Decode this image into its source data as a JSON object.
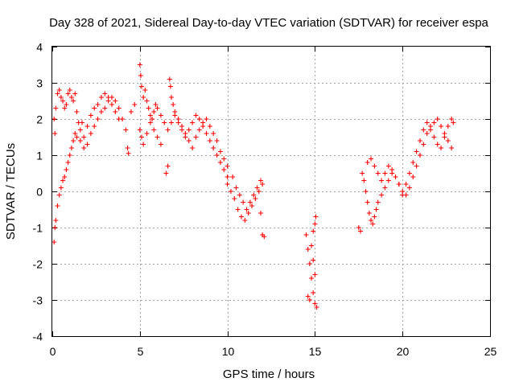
{
  "chart_data": {
    "type": "scatter",
    "title": "Day 328 of 2021, Sidereal Day-to-day VTEC variation (SDTVAR) for receiver espa",
    "xlabel": "GPS time / hours",
    "ylabel": "SDTVAR / TECUs",
    "xlim": [
      0,
      25
    ],
    "ylim": [
      -4,
      4
    ],
    "xticks": [
      0,
      5,
      10,
      15,
      20,
      25
    ],
    "yticks": [
      -4,
      -3,
      -2,
      -1,
      0,
      1,
      2,
      3,
      4
    ],
    "xtick_labels": [
      "0",
      "5",
      "10",
      "15",
      "20",
      "25"
    ],
    "ytick_labels": [
      "-4",
      "-3",
      "-2",
      "-1",
      "0",
      "1",
      "2",
      "3",
      "4"
    ],
    "grid": true,
    "marker": "+",
    "marker_color": "#ff0000",
    "series": [
      {
        "name": "SDTVAR",
        "points": [
          [
            0.1,
            -1.4
          ],
          [
            0.15,
            -1.0
          ],
          [
            0.2,
            -0.8
          ],
          [
            0.3,
            -0.4
          ],
          [
            0.4,
            -0.1
          ],
          [
            0.5,
            0.1
          ],
          [
            0.6,
            0.3
          ],
          [
            0.7,
            0.4
          ],
          [
            0.8,
            0.6
          ],
          [
            0.9,
            0.8
          ],
          [
            1.0,
            1.0
          ],
          [
            1.1,
            1.2
          ],
          [
            1.2,
            1.4
          ],
          [
            1.3,
            1.6
          ],
          [
            1.4,
            1.5
          ],
          [
            1.6,
            1.4
          ],
          [
            1.8,
            1.2
          ],
          [
            2.0,
            1.3
          ],
          [
            2.2,
            1.6
          ],
          [
            2.4,
            1.8
          ],
          [
            2.6,
            2.0
          ],
          [
            2.8,
            2.2
          ],
          [
            3.0,
            2.3
          ],
          [
            3.2,
            2.5
          ],
          [
            3.4,
            2.6
          ],
          [
            3.6,
            2.5
          ],
          [
            3.8,
            2.3
          ],
          [
            4.0,
            2.0
          ],
          [
            0.1,
            2.0
          ],
          [
            0.15,
            1.6
          ],
          [
            0.2,
            2.3
          ],
          [
            0.3,
            2.7
          ],
          [
            0.4,
            2.8
          ],
          [
            0.5,
            2.6
          ],
          [
            0.6,
            2.5
          ],
          [
            0.7,
            2.3
          ],
          [
            0.8,
            2.4
          ],
          [
            0.9,
            2.7
          ],
          [
            1.0,
            2.8
          ],
          [
            1.1,
            2.6
          ],
          [
            1.2,
            2.5
          ],
          [
            1.3,
            2.7
          ],
          [
            1.4,
            2.2
          ],
          [
            1.5,
            1.9
          ],
          [
            1.6,
            1.7
          ],
          [
            1.7,
            1.9
          ],
          [
            1.8,
            1.5
          ],
          [
            2.0,
            1.8
          ],
          [
            2.2,
            2.1
          ],
          [
            2.4,
            2.3
          ],
          [
            2.6,
            2.4
          ],
          [
            2.8,
            2.6
          ],
          [
            3.0,
            2.7
          ],
          [
            3.2,
            2.6
          ],
          [
            3.4,
            2.4
          ],
          [
            3.6,
            2.2
          ],
          [
            3.8,
            2.0
          ],
          [
            4.2,
            1.7
          ],
          [
            4.3,
            1.2
          ],
          [
            4.35,
            1.05
          ],
          [
            4.5,
            2.2
          ],
          [
            4.7,
            2.4
          ],
          [
            5.0,
            3.5
          ],
          [
            5.05,
            3.2
          ],
          [
            5.1,
            2.9
          ],
          [
            5.2,
            2.6
          ],
          [
            5.3,
            2.8
          ],
          [
            5.4,
            2.5
          ],
          [
            5.5,
            2.3
          ],
          [
            5.6,
            2.1
          ],
          [
            5.7,
            2.0
          ],
          [
            5.8,
            2.2
          ],
          [
            5.9,
            2.4
          ],
          [
            6.0,
            2.3
          ],
          [
            6.2,
            2.1
          ],
          [
            6.4,
            1.9
          ],
          [
            6.6,
            1.7
          ],
          [
            6.8,
            1.9
          ],
          [
            7.0,
            2.1
          ],
          [
            7.2,
            1.9
          ],
          [
            7.4,
            1.7
          ],
          [
            7.6,
            1.5
          ],
          [
            7.8,
            1.7
          ],
          [
            8.0,
            1.9
          ],
          [
            8.2,
            2.1
          ],
          [
            8.4,
            2.0
          ],
          [
            8.6,
            1.8
          ],
          [
            8.8,
            1.6
          ],
          [
            9.0,
            1.4
          ],
          [
            9.2,
            1.2
          ],
          [
            9.4,
            1.0
          ],
          [
            9.6,
            0.8
          ],
          [
            9.8,
            0.6
          ],
          [
            10.0,
            0.4
          ],
          [
            5.0,
            1.7
          ],
          [
            5.1,
            1.5
          ],
          [
            5.2,
            1.3
          ],
          [
            5.4,
            1.6
          ],
          [
            5.6,
            1.9
          ],
          [
            5.8,
            1.7
          ],
          [
            6.0,
            1.5
          ],
          [
            6.2,
            1.3
          ],
          [
            6.5,
            0.5
          ],
          [
            6.6,
            0.7
          ],
          [
            6.7,
            3.1
          ],
          [
            6.75,
            2.9
          ],
          [
            6.8,
            2.6
          ],
          [
            6.9,
            2.4
          ],
          [
            7.0,
            2.2
          ],
          [
            7.2,
            2.0
          ],
          [
            7.4,
            1.8
          ],
          [
            7.6,
            1.6
          ],
          [
            7.8,
            1.4
          ],
          [
            8.0,
            1.2
          ],
          [
            8.2,
            1.5
          ],
          [
            8.4,
            1.7
          ],
          [
            8.6,
            1.9
          ],
          [
            8.8,
            2.0
          ],
          [
            9.0,
            1.8
          ],
          [
            9.2,
            1.6
          ],
          [
            9.4,
            1.4
          ],
          [
            9.6,
            1.1
          ],
          [
            9.8,
            0.9
          ],
          [
            10.0,
            0.7
          ],
          [
            10.0,
            0.2
          ],
          [
            10.2,
            0.0
          ],
          [
            10.4,
            -0.2
          ],
          [
            10.6,
            -0.5
          ],
          [
            10.8,
            -0.7
          ],
          [
            11.0,
            -0.8
          ],
          [
            11.2,
            -0.6
          ],
          [
            11.4,
            -0.4
          ],
          [
            11.6,
            -0.2
          ],
          [
            11.8,
            0.0
          ],
          [
            12.0,
            0.2
          ],
          [
            12.0,
            -1.2
          ],
          [
            12.1,
            -1.25
          ],
          [
            10.3,
            0.4
          ],
          [
            10.5,
            0.1
          ],
          [
            10.7,
            -0.1
          ],
          [
            10.9,
            -0.3
          ],
          [
            11.1,
            -0.5
          ],
          [
            11.3,
            -0.3
          ],
          [
            11.5,
            -0.1
          ],
          [
            11.7,
            0.1
          ],
          [
            11.9,
            0.3
          ],
          [
            11.9,
            -0.6
          ],
          [
            14.5,
            -1.2
          ],
          [
            14.6,
            -1.6
          ],
          [
            14.7,
            -2.0
          ],
          [
            14.8,
            -2.4
          ],
          [
            14.9,
            -2.8
          ],
          [
            15.0,
            -3.1
          ],
          [
            15.1,
            -3.2
          ],
          [
            15.0,
            -2.3
          ],
          [
            14.9,
            -1.9
          ],
          [
            14.8,
            -1.5
          ],
          [
            14.9,
            -1.1
          ],
          [
            15.0,
            -0.9
          ],
          [
            15.05,
            -0.7
          ],
          [
            14.6,
            -2.9
          ],
          [
            14.7,
            -3.0
          ],
          [
            17.5,
            -1.0
          ],
          [
            17.6,
            -1.1
          ],
          [
            17.7,
            0.5
          ],
          [
            17.8,
            0.3
          ],
          [
            17.9,
            0.0
          ],
          [
            18.0,
            -0.3
          ],
          [
            18.1,
            -0.6
          ],
          [
            18.2,
            -0.8
          ],
          [
            18.3,
            -0.9
          ],
          [
            18.4,
            -0.7
          ],
          [
            18.5,
            -0.5
          ],
          [
            18.6,
            -0.3
          ],
          [
            18.8,
            -0.1
          ],
          [
            19.0,
            0.1
          ],
          [
            19.2,
            0.3
          ],
          [
            19.4,
            0.5
          ],
          [
            19.6,
            0.4
          ],
          [
            19.8,
            0.2
          ],
          [
            20.0,
            0.0
          ],
          [
            20.2,
            -0.1
          ],
          [
            20.4,
            0.1
          ],
          [
            20.6,
            0.4
          ],
          [
            20.8,
            0.7
          ],
          [
            21.0,
            1.0
          ],
          [
            21.2,
            1.3
          ],
          [
            21.4,
            1.6
          ],
          [
            21.6,
            1.8
          ],
          [
            21.8,
            1.9
          ],
          [
            22.0,
            2.0
          ],
          [
            22.2,
            1.8
          ],
          [
            22.4,
            1.6
          ],
          [
            22.6,
            1.4
          ],
          [
            22.8,
            1.2
          ],
          [
            18.0,
            0.8
          ],
          [
            18.2,
            0.9
          ],
          [
            18.4,
            0.7
          ],
          [
            18.6,
            0.5
          ],
          [
            18.8,
            0.3
          ],
          [
            19.0,
            0.5
          ],
          [
            19.2,
            0.7
          ],
          [
            19.4,
            0.6
          ],
          [
            19.6,
            0.4
          ],
          [
            19.8,
            0.2
          ],
          [
            20.0,
            -0.1
          ],
          [
            20.2,
            0.2
          ],
          [
            20.4,
            0.5
          ],
          [
            20.6,
            0.8
          ],
          [
            20.8,
            1.1
          ],
          [
            21.0,
            1.4
          ],
          [
            21.2,
            1.7
          ],
          [
            21.4,
            1.9
          ],
          [
            21.6,
            1.7
          ],
          [
            21.8,
            1.5
          ],
          [
            22.0,
            1.3
          ],
          [
            22.2,
            1.2
          ],
          [
            22.4,
            1.5
          ],
          [
            22.6,
            1.8
          ],
          [
            22.8,
            2.0
          ],
          [
            22.9,
            1.9
          ]
        ]
      }
    ]
  }
}
